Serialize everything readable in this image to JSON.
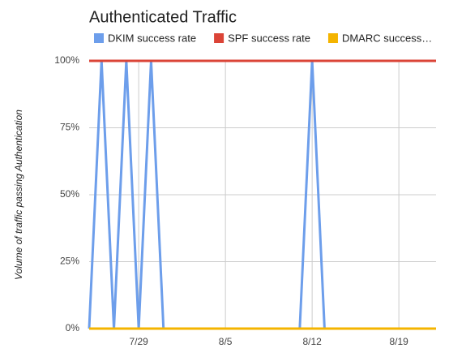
{
  "chart_data": {
    "type": "line",
    "title": "Authenticated Traffic",
    "ylabel": "Volume of traffic passing Authentication",
    "x": [
      "7/25",
      "7/26",
      "7/27",
      "7/28",
      "7/29",
      "7/30",
      "7/31",
      "8/1",
      "8/2",
      "8/3",
      "8/4",
      "8/5",
      "8/6",
      "8/7",
      "8/8",
      "8/9",
      "8/10",
      "8/11",
      "8/12",
      "8/13",
      "8/14",
      "8/15",
      "8/16",
      "8/17",
      "8/18",
      "8/19",
      "8/20",
      "8/21",
      "8/22"
    ],
    "xticks": [
      "7/29",
      "8/5",
      "8/12",
      "8/19"
    ],
    "ylim": [
      0,
      100
    ],
    "yticks": [
      {
        "value": 0,
        "label": "0%"
      },
      {
        "value": 25,
        "label": "25%"
      },
      {
        "value": 50,
        "label": "50%"
      },
      {
        "value": 75,
        "label": "75%"
      },
      {
        "value": 100,
        "label": "100%"
      }
    ],
    "grid": true,
    "legend": "top",
    "series": [
      {
        "name": "DKIM success rate",
        "color": "#6d9eeb",
        "values": [
          0,
          100,
          0,
          100,
          0,
          100,
          0,
          0,
          0,
          0,
          0,
          0,
          0,
          0,
          0,
          0,
          0,
          0,
          100,
          0,
          0,
          0,
          0,
          0,
          0,
          0,
          0,
          0,
          0
        ]
      },
      {
        "name": "SPF success rate",
        "color": "#db4437",
        "values": [
          100,
          100,
          100,
          100,
          100,
          100,
          100,
          100,
          100,
          100,
          100,
          100,
          100,
          100,
          100,
          100,
          100,
          100,
          100,
          100,
          100,
          100,
          100,
          100,
          100,
          100,
          100,
          100,
          100
        ]
      },
      {
        "name": "DMARC success…",
        "color": "#f4b400",
        "values": [
          0,
          0,
          0,
          0,
          0,
          0,
          0,
          0,
          0,
          0,
          0,
          0,
          0,
          0,
          0,
          0,
          0,
          0,
          0,
          0,
          0,
          0,
          0,
          0,
          0,
          0,
          0,
          0,
          0
        ]
      }
    ]
  }
}
